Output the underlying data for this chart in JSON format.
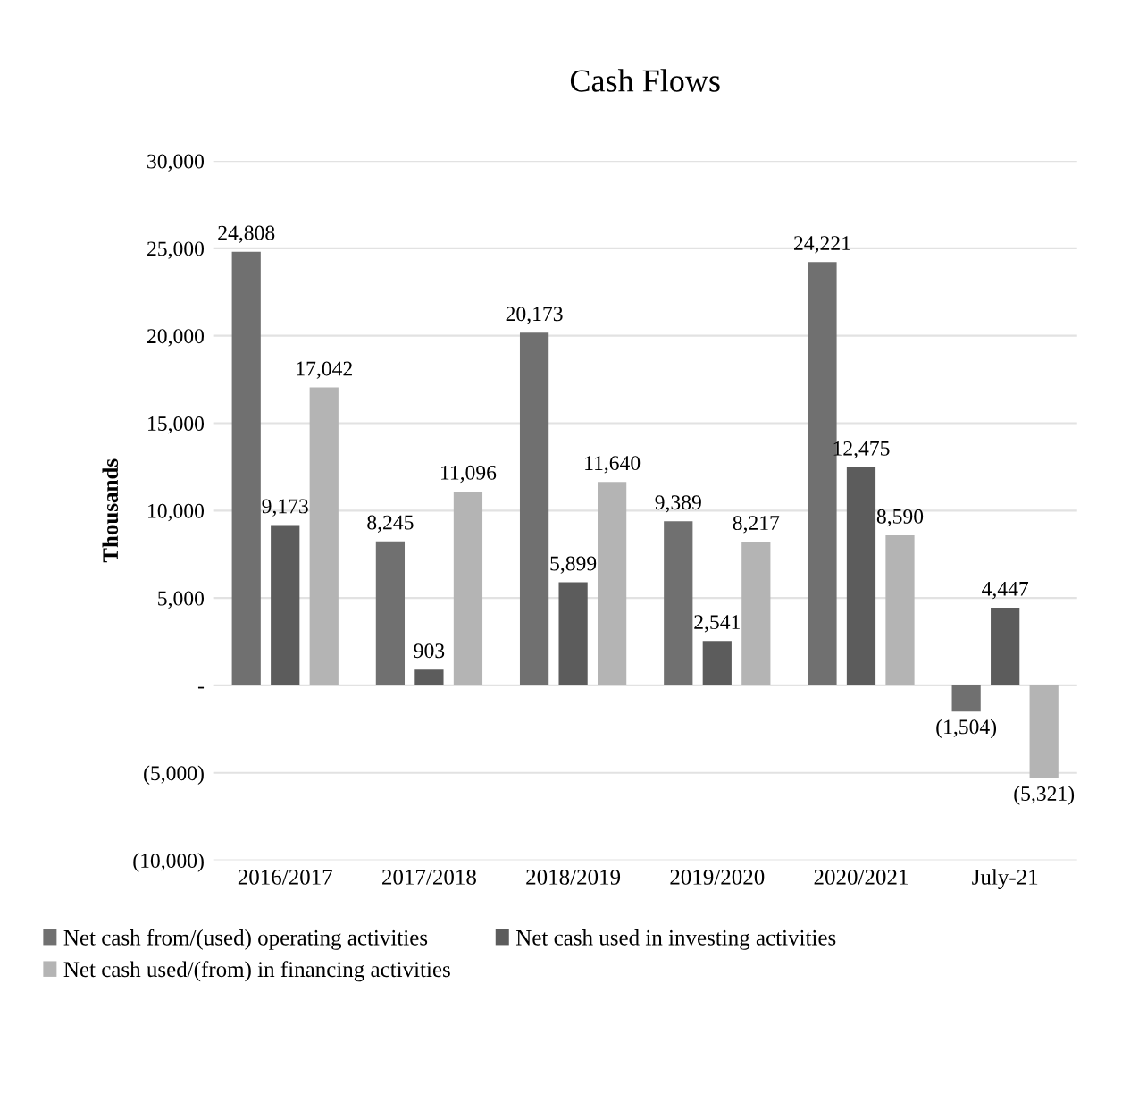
{
  "chart_data": {
    "type": "bar",
    "title": "Cash Flows",
    "ylabel": "Thousands",
    "categories": [
      "2016/2017",
      "2017/2018",
      "2018/2019",
      "2019/2020",
      "2020/2021",
      "July-21"
    ],
    "series": [
      {
        "name": "Net cash from/(used) operating activities",
        "color": "#707070",
        "values": [
          24808,
          8245,
          20173,
          9389,
          24221,
          -1504
        ],
        "value_labels": [
          "24,808",
          "8,245",
          "20,173",
          "9,389",
          "24,221",
          "(1,504)"
        ]
      },
      {
        "name": "Net cash used in investing activities",
        "color": "#5c5c5c",
        "values": [
          9173,
          903,
          5899,
          2541,
          12475,
          4447
        ],
        "value_labels": [
          "9,173",
          "903",
          "5,899",
          "2,541",
          "12,475",
          "4,447"
        ]
      },
      {
        "name": "Net cash used/(from) in financing activities",
        "color": "#b4b4b4",
        "values": [
          17042,
          11096,
          11640,
          8217,
          8590,
          -5321
        ],
        "value_labels": [
          "17,042",
          "11,096",
          "11,640",
          "8,217",
          "8,590",
          "(5,321)"
        ]
      }
    ],
    "ylim": [
      -10000,
      30000
    ],
    "yticks": [
      {
        "value": 30000,
        "label": "30,000"
      },
      {
        "value": 25000,
        "label": "25,000"
      },
      {
        "value": 20000,
        "label": "20,000"
      },
      {
        "value": 15000,
        "label": "15,000"
      },
      {
        "value": 10000,
        "label": "10,000"
      },
      {
        "value": 5000,
        "label": "5,000"
      },
      {
        "value": 0,
        "label": "-"
      },
      {
        "value": -5000,
        "label": "(5,000)"
      },
      {
        "value": -10000,
        "label": "(10,000)"
      }
    ],
    "grid": "y",
    "legend": "bottom"
  }
}
